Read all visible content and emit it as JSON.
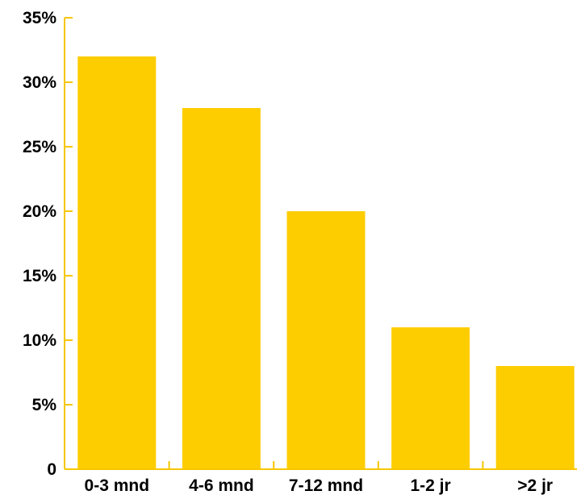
{
  "chart_data": {
    "type": "bar",
    "title": "",
    "xlabel": "",
    "ylabel": "",
    "categories": [
      "0-3 mnd",
      "4-6 mnd",
      "7-12 mnd",
      "1-2 jr",
      ">2 jr"
    ],
    "values": [
      32,
      28,
      20,
      11,
      8
    ],
    "ylim": [
      0,
      35
    ],
    "yticks": [
      0,
      5,
      10,
      15,
      20,
      25,
      30,
      35
    ],
    "ytick_labels": [
      "0",
      "5%",
      "10%",
      "15%",
      "20%",
      "25%",
      "30%",
      "35%"
    ],
    "grid": false,
    "legend": "none",
    "colors": {
      "bar": "#fdcd00",
      "axis": "#f7c600",
      "text": "#000000"
    }
  }
}
